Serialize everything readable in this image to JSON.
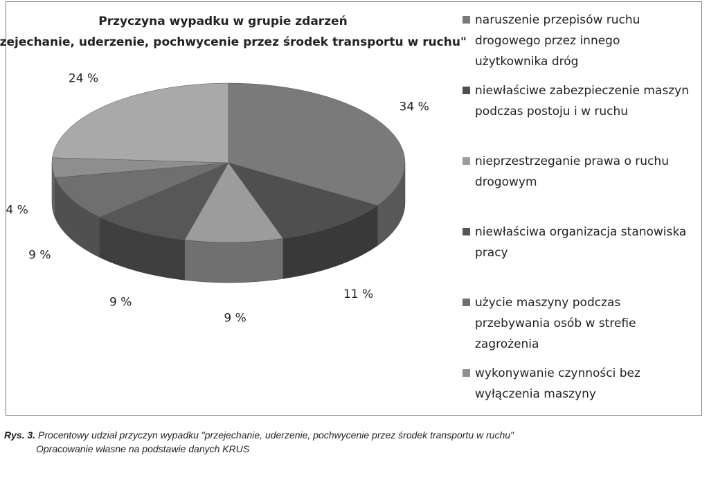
{
  "chart_data": {
    "type": "pie3d",
    "title": "Przyczyna wypadku  w grupie zdarzeń",
    "subtitle": "\"przejechanie, uderzenie, pochwycenie przez środek transportu w ruchu\"",
    "categories": [
      "naruszenie przepisów ruchu drogowego przez innego użytkownika dróg",
      "niewłaściwe zabezpieczenie  maszyn podczas postoju i w ruchu",
      "nieprzestrzeganie prawa o ruchu drogowym",
      "niewłaściwa  organizacja stanowiska pracy",
      "użycie maszyny podczas przebywania osób w strefie zagrożenia",
      "wykonywanie czynności  bez wyłączenia maszyny",
      null
    ],
    "values": [
      34,
      11,
      9,
      9,
      9,
      4,
      24
    ],
    "value_labels": [
      "34 %",
      "11 %",
      "9 %",
      "9 %",
      "9 %",
      "4 %",
      "24 %"
    ],
    "colors": [
      "#7a7a7a",
      "#4f4f4f",
      "#9c9c9c",
      "#575757",
      "#6f6f6f",
      "#8e8e8e",
      "#a9a9a9"
    ]
  },
  "caption": {
    "label": "Rys. 3.",
    "text": "Procentowy udział przyczyn wypadku \"przejechanie, uderzenie, pochwycenie przez środek transportu w ruchu\"",
    "source": "Opracowanie własne na podstawie danych KRUS"
  }
}
